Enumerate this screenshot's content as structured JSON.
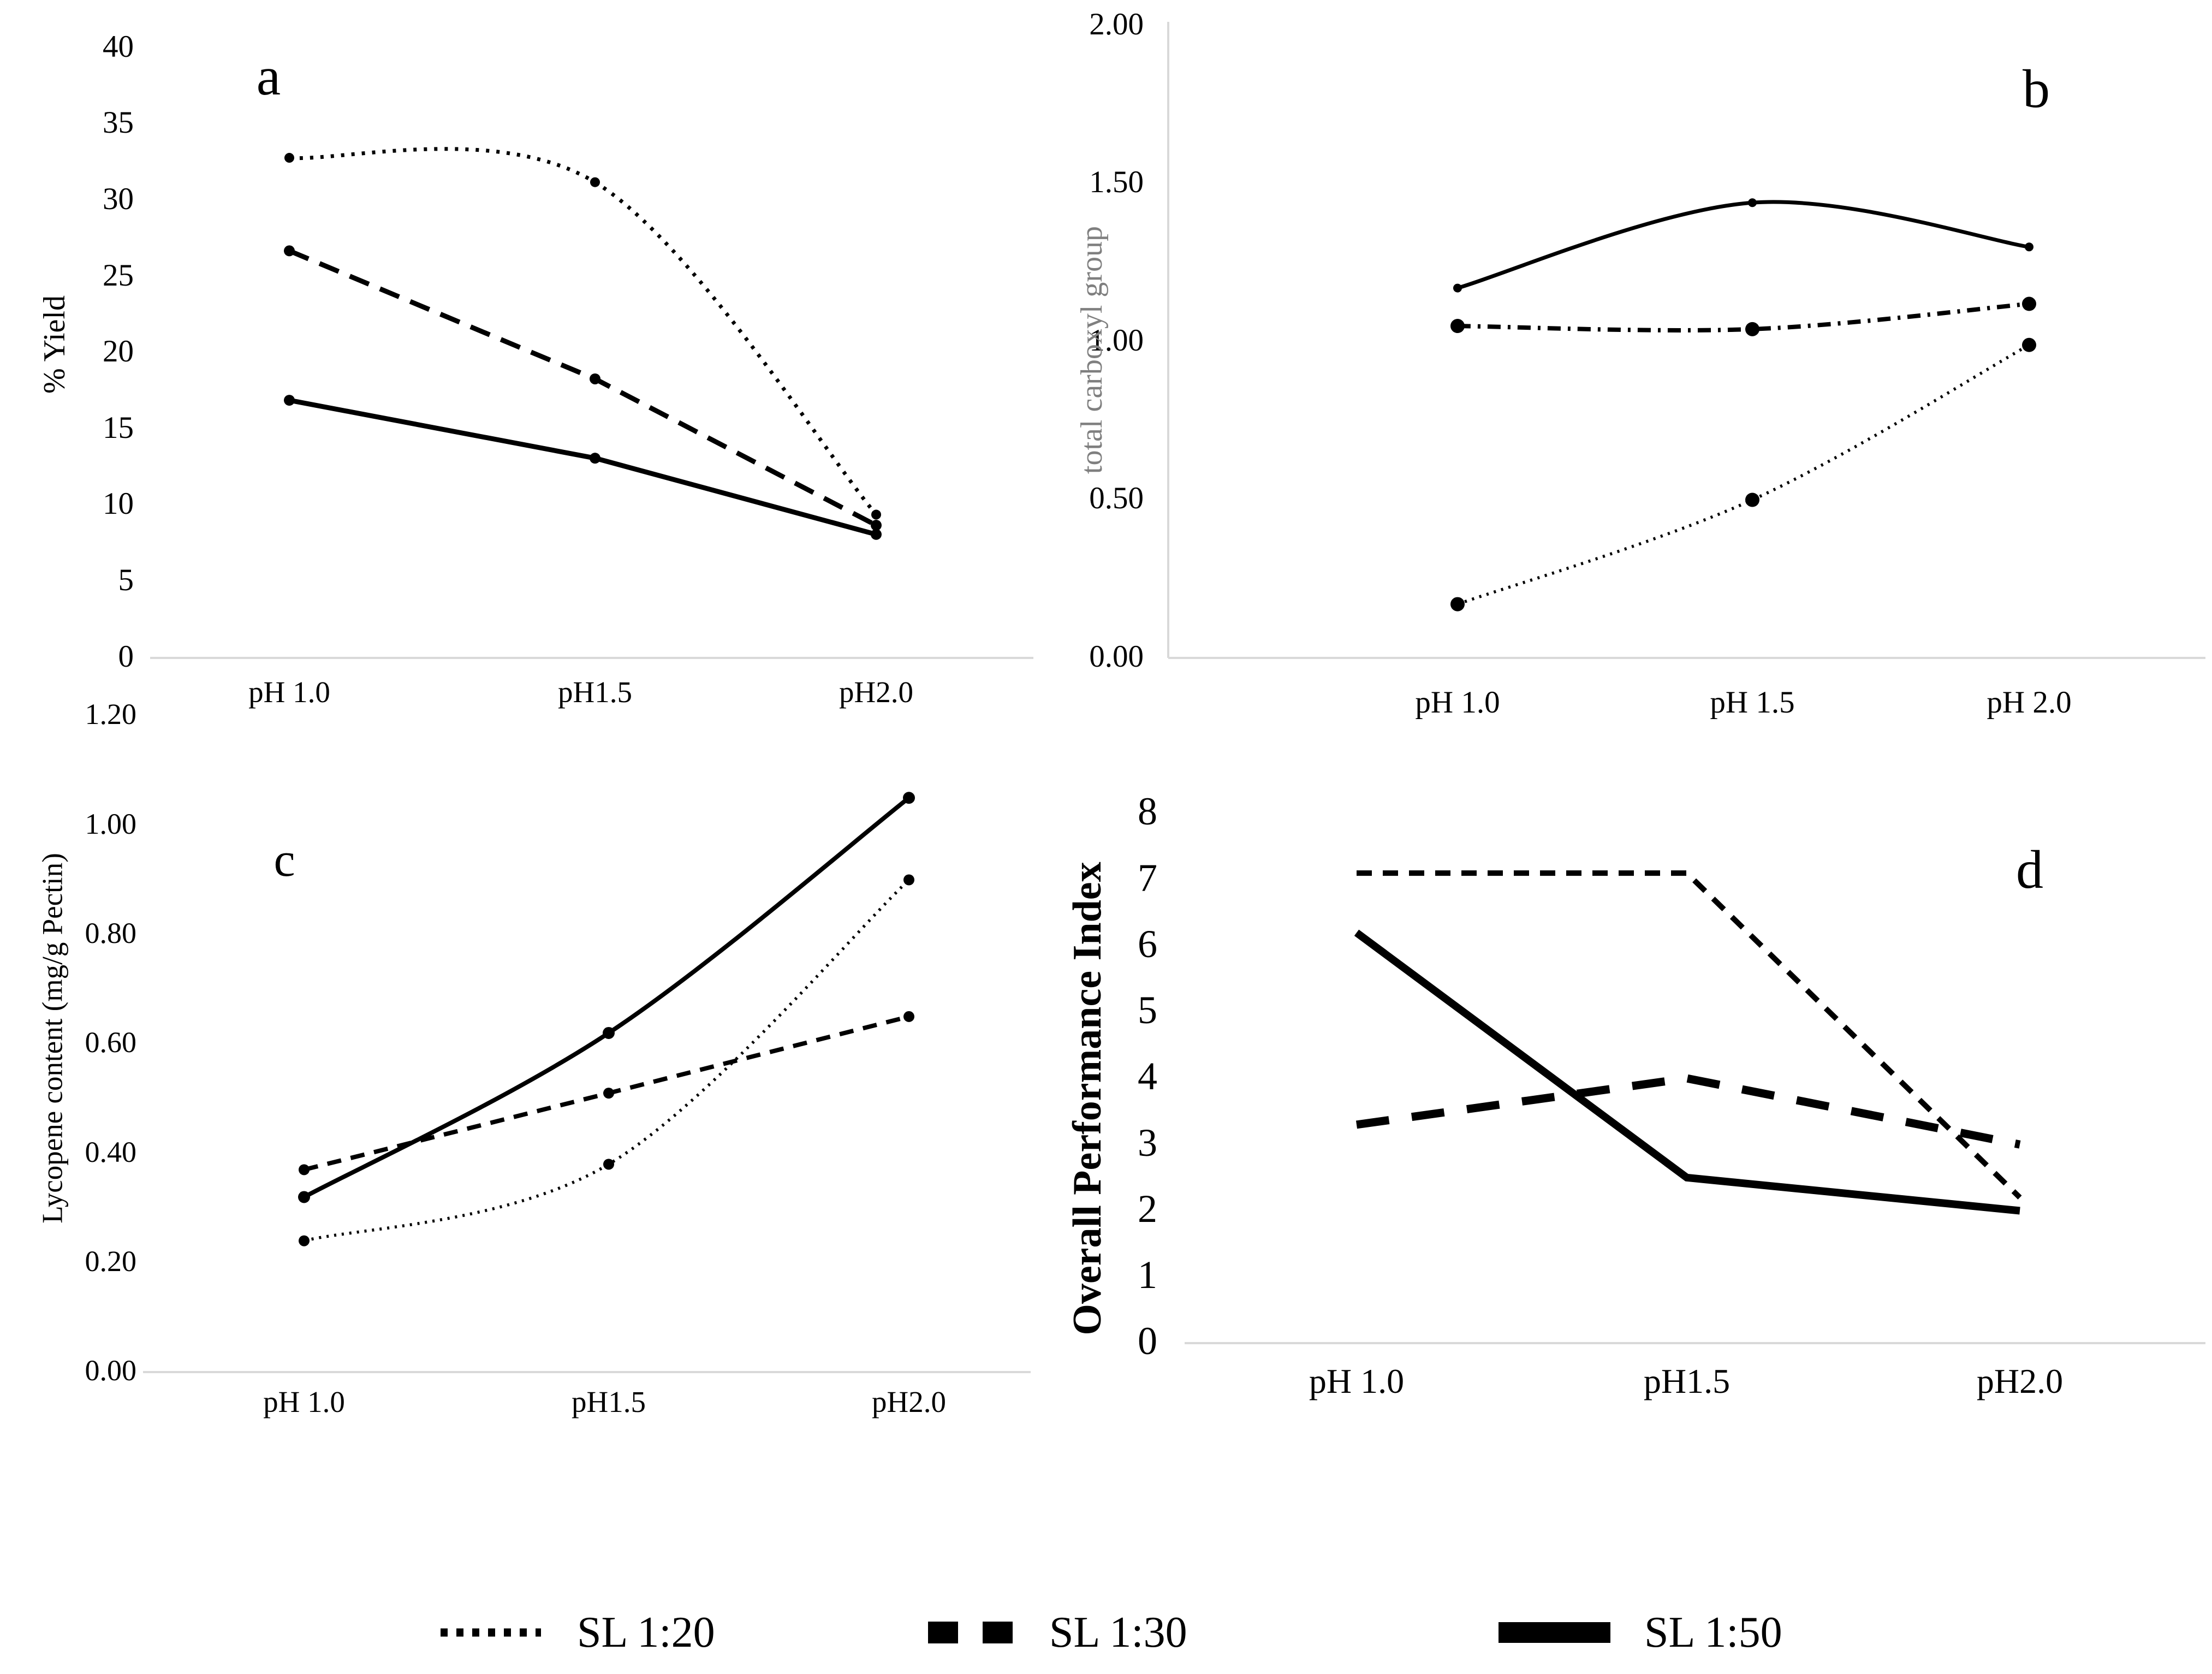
{
  "figure": {
    "background": "#ffffff",
    "axis_color": "#d9d9d9",
    "line_color": "#000000",
    "ylabel_b_color": "#7f7f7f"
  },
  "chart_data": [
    {
      "panel": "a",
      "type": "line",
      "title": "a",
      "ylabel": "% Yield",
      "xlabel": "",
      "categories": [
        "pH 1.0",
        "pH1.5",
        "pH2.0"
      ],
      "yticks": [
        "0",
        "5",
        "10",
        "15",
        "20",
        "25",
        "30",
        "35",
        "40"
      ],
      "ylim": [
        0,
        40
      ],
      "grid": false,
      "series": [
        {
          "name": "SL 1:20",
          "style": "dotted",
          "values": [
            32.8,
            31.2,
            9.4
          ]
        },
        {
          "name": "SL 1:30",
          "style": "dashed",
          "values": [
            26.7,
            18.3,
            8.7
          ]
        },
        {
          "name": "SL 1:50",
          "style": "solid",
          "values": [
            16.9,
            13.1,
            8.1
          ]
        }
      ]
    },
    {
      "panel": "b",
      "type": "line",
      "title": "b",
      "ylabel": "total carboxyl group",
      "xlabel": "",
      "categories": [
        "pH 1.0",
        "pH 1.5",
        "pH 2.0"
      ],
      "yticks": [
        "0.00",
        "0.50",
        "1.00",
        "1.50",
        "2.00"
      ],
      "ylim": [
        0,
        2
      ],
      "grid": false,
      "series": [
        {
          "name": "SL 1:20",
          "style": "dotted",
          "values": [
            0.17,
            0.5,
            0.99
          ]
        },
        {
          "name": "SL 1:30",
          "style": "dashdot",
          "values": [
            1.05,
            1.04,
            1.12
          ]
        },
        {
          "name": "SL 1:50",
          "style": "solid",
          "values": [
            1.17,
            1.44,
            1.3
          ]
        }
      ]
    },
    {
      "panel": "c",
      "type": "line",
      "title": "c",
      "ylabel": "Lycopene content (mg/g Pectin)",
      "xlabel": "",
      "categories": [
        "pH 1.0",
        "pH1.5",
        "pH2.0"
      ],
      "yticks": [
        "0.00",
        "0.20",
        "0.40",
        "0.60",
        "0.80",
        "1.00",
        "1.20"
      ],
      "ylim": [
        0,
        1.2
      ],
      "grid": false,
      "series": [
        {
          "name": "SL 1:20",
          "style": "dotted",
          "values": [
            0.24,
            0.38,
            0.9
          ]
        },
        {
          "name": "SL 1:30",
          "style": "dashed",
          "values": [
            0.37,
            0.51,
            0.65
          ]
        },
        {
          "name": "SL 1:50",
          "style": "solid",
          "values": [
            0.32,
            0.62,
            1.05
          ]
        }
      ]
    },
    {
      "panel": "d",
      "type": "line",
      "title": "d",
      "ylabel": "Overall Performance Index",
      "xlabel": "",
      "categories": [
        "pH 1.0",
        "pH1.5",
        "pH2.0"
      ],
      "yticks": [
        "0",
        "1",
        "2",
        "3",
        "4",
        "5",
        "6",
        "7",
        "8"
      ],
      "ylim": [
        0,
        8
      ],
      "grid": false,
      "series": [
        {
          "name": "SL 1:20",
          "style": "fine-dashed",
          "values": [
            7.1,
            7.1,
            2.2
          ]
        },
        {
          "name": "SL 1:30",
          "style": "heavy-dashed",
          "values": [
            3.3,
            4.0,
            3.0
          ]
        },
        {
          "name": "SL 1:50",
          "style": "solid",
          "values": [
            6.2,
            2.5,
            2.0
          ]
        }
      ]
    }
  ],
  "legend": {
    "items": [
      {
        "label": "SL 1:20",
        "style": "dotted"
      },
      {
        "label": "SL 1:30",
        "style": "dashed"
      },
      {
        "label": "SL 1:50",
        "style": "solid"
      }
    ]
  }
}
